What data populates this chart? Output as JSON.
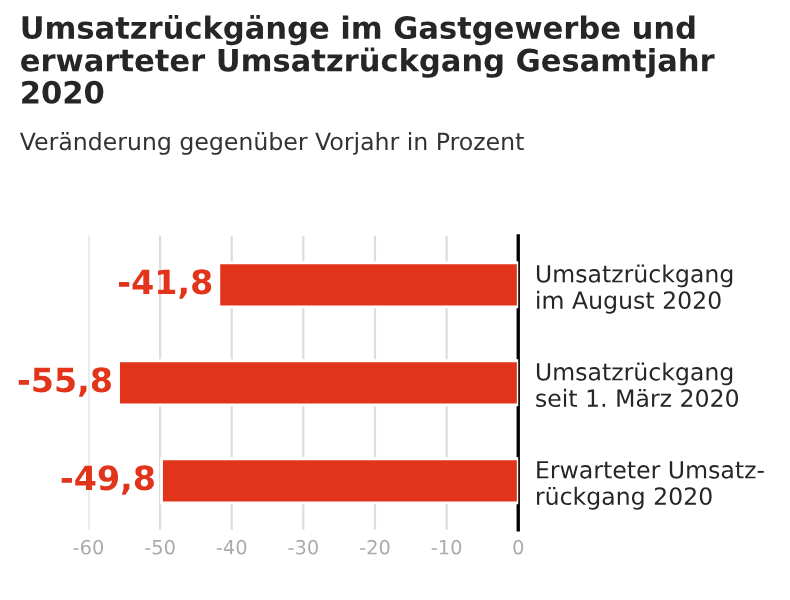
{
  "chart_data": {
    "type": "bar",
    "orientation": "horizontal",
    "title": "Umsatzrückgänge im Gastgewerbe und erwarteter Umsatzrückgang Gesamtjahr 2020",
    "subtitle": "Veränderung gegenüber Vorjahr in Prozent",
    "categories": [
      "Umsatzrückgang\nim August 2020",
      "Umsatzrückgang\nseit 1. März 2020",
      "Erwarteter Umsatz-\nrückgang 2020"
    ],
    "values": [
      -41.8,
      -55.8,
      -49.8
    ],
    "value_labels": [
      "-41,8",
      "-55,8",
      "-49,8"
    ],
    "color": "#e2341a",
    "xlim": [
      -60,
      0
    ],
    "xticks": [
      -60,
      -50,
      -40,
      -30,
      -20,
      -10,
      0
    ],
    "grid": "x",
    "legend": false
  }
}
